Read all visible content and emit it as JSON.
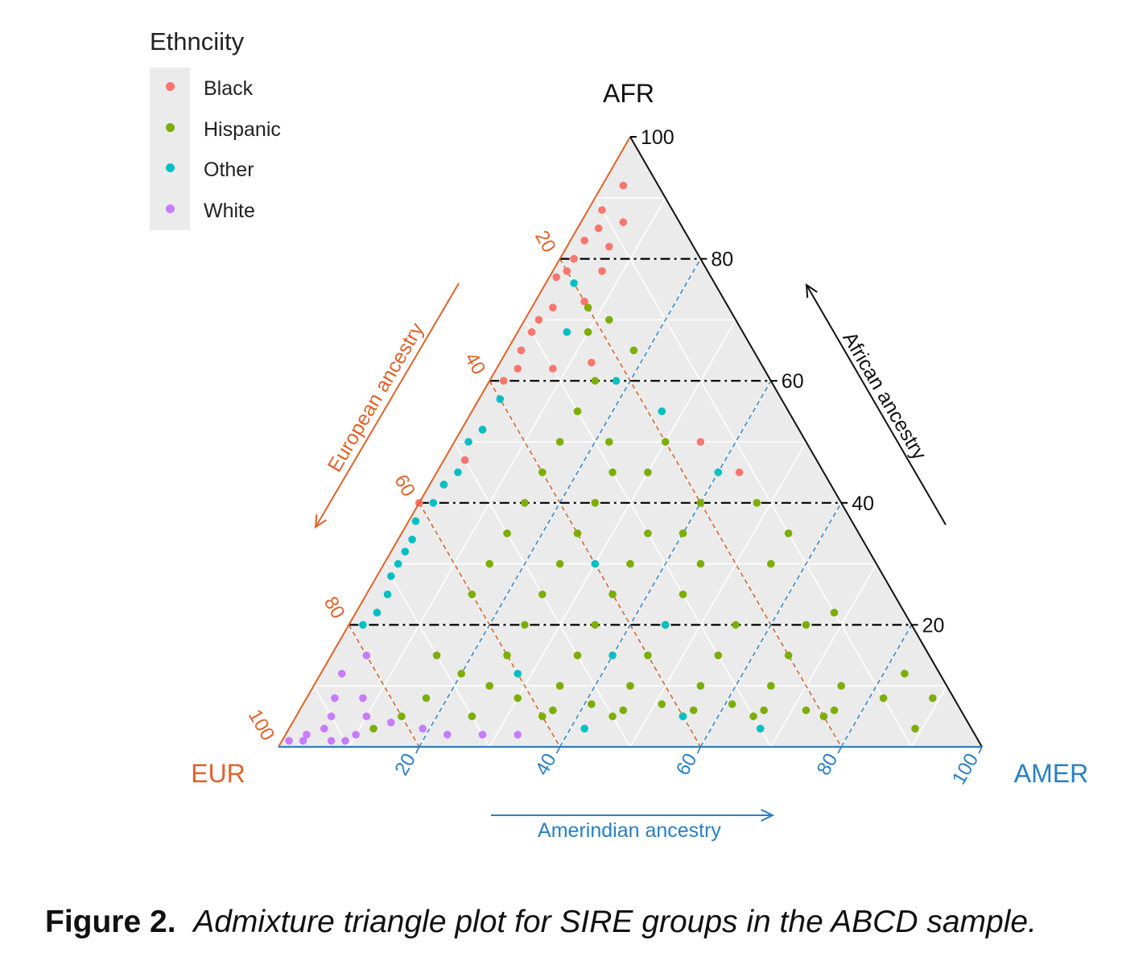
{
  "chart_data": {
    "type": "scatter",
    "subtype": "ternary",
    "legend": {
      "title": "Ethnciity",
      "placement": "top-left",
      "entries": [
        {
          "name": "Black",
          "color": "#f8766d"
        },
        {
          "name": "Hispanic",
          "color": "#7cae00"
        },
        {
          "name": "Other",
          "color": "#00bfc4"
        },
        {
          "name": "White",
          "color": "#c77cff"
        }
      ]
    },
    "axes": {
      "afr": {
        "vertex_label": "AFR",
        "axis_label": "African ancestry",
        "color": "#111111",
        "ticks": [
          "100",
          "80",
          "60",
          "40",
          "20"
        ]
      },
      "eur": {
        "vertex_label": "EUR",
        "axis_label": "European ancestry",
        "color": "#e0622a",
        "ticks": [
          "20",
          "40",
          "60",
          "80",
          "100"
        ]
      },
      "amer": {
        "vertex_label": "AMER",
        "axis_label": "Amerindian ancestry",
        "color": "#2a7fc4",
        "ticks": [
          "20",
          "40",
          "60",
          "80",
          "100"
        ]
      }
    },
    "grid": true,
    "series": [
      {
        "name": "Black",
        "points": [
          [
            5,
            92,
            3
          ],
          [
            10,
            88,
            2
          ],
          [
            12,
            85,
            3
          ],
          [
            15,
            83,
            2
          ],
          [
            18,
            80,
            2
          ],
          [
            20,
            78,
            2
          ],
          [
            22,
            77,
            1
          ],
          [
            25,
            72,
            3
          ],
          [
            28,
            70,
            2
          ],
          [
            30,
            68,
            2
          ],
          [
            33,
            65,
            2
          ],
          [
            35,
            62,
            3
          ],
          [
            38,
            60,
            2
          ],
          [
            8,
            86,
            6
          ],
          [
            12,
            82,
            6
          ],
          [
            15,
            78,
            7
          ],
          [
            20,
            73,
            7
          ],
          [
            30,
            62,
            8
          ],
          [
            24,
            63,
            13
          ],
          [
            15,
            50,
            35
          ],
          [
            12,
            45,
            43
          ],
          [
            45,
            52,
            3
          ],
          [
            50,
            47,
            3
          ],
          [
            55,
            43,
            2
          ],
          [
            60,
            40,
            0
          ]
        ]
      },
      {
        "name": "Hispanic",
        "points": [
          [
            20,
            72,
            8
          ],
          [
            18,
            70,
            12
          ],
          [
            22,
            68,
            10
          ],
          [
            17,
            65,
            18
          ],
          [
            25,
            60,
            15
          ],
          [
            30,
            55,
            15
          ],
          [
            28,
            50,
            22
          ],
          [
            35,
            50,
            15
          ],
          [
            20,
            50,
            30
          ],
          [
            25,
            45,
            30
          ],
          [
            30,
            45,
            25
          ],
          [
            40,
            45,
            15
          ],
          [
            45,
            40,
            15
          ],
          [
            35,
            40,
            25
          ],
          [
            20,
            40,
            40
          ],
          [
            25,
            35,
            40
          ],
          [
            30,
            35,
            35
          ],
          [
            40,
            35,
            25
          ],
          [
            50,
            35,
            15
          ],
          [
            55,
            30,
            15
          ],
          [
            45,
            30,
            25
          ],
          [
            35,
            30,
            35
          ],
          [
            25,
            30,
            45
          ],
          [
            15,
            30,
            55
          ],
          [
            30,
            25,
            45
          ],
          [
            40,
            25,
            35
          ],
          [
            50,
            25,
            25
          ],
          [
            60,
            25,
            15
          ],
          [
            55,
            20,
            25
          ],
          [
            45,
            20,
            35
          ],
          [
            35,
            20,
            45
          ],
          [
            25,
            20,
            55
          ],
          [
            15,
            20,
            65
          ],
          [
            20,
            15,
            65
          ],
          [
            30,
            15,
            55
          ],
          [
            40,
            15,
            45
          ],
          [
            50,
            15,
            35
          ],
          [
            60,
            15,
            25
          ],
          [
            70,
            15,
            15
          ],
          [
            65,
            10,
            25
          ],
          [
            55,
            10,
            35
          ],
          [
            45,
            10,
            45
          ],
          [
            35,
            10,
            55
          ],
          [
            25,
            10,
            65
          ],
          [
            15,
            10,
            75
          ],
          [
            10,
            8,
            82
          ],
          [
            20,
            5,
            75
          ],
          [
            30,
            5,
            65
          ],
          [
            40,
            5,
            55
          ],
          [
            50,
            5,
            45
          ],
          [
            60,
            5,
            35
          ],
          [
            70,
            5,
            25
          ],
          [
            80,
            5,
            15
          ],
          [
            85,
            3,
            12
          ],
          [
            75,
            8,
            17
          ],
          [
            68,
            12,
            20
          ],
          [
            62,
            8,
            30
          ],
          [
            58,
            6,
            36
          ],
          [
            52,
            7,
            41
          ],
          [
            48,
            6,
            46
          ],
          [
            42,
            7,
            51
          ],
          [
            38,
            6,
            56
          ],
          [
            32,
            7,
            61
          ],
          [
            28,
            6,
            66
          ],
          [
            22,
            6,
            72
          ],
          [
            18,
            6,
            76
          ],
          [
            5,
            12,
            83
          ],
          [
            3,
            8,
            89
          ],
          [
            8,
            3,
            89
          ],
          [
            10,
            22,
            68
          ],
          [
            12,
            40,
            48
          ],
          [
            10,
            35,
            55
          ]
        ]
      },
      {
        "name": "Other",
        "points": [
          [
            45,
            52,
            3
          ],
          [
            40,
            57,
            3
          ],
          [
            48,
            50,
            2
          ],
          [
            52,
            45,
            3
          ],
          [
            55,
            43,
            2
          ],
          [
            58,
            40,
            2
          ],
          [
            62,
            37,
            1
          ],
          [
            64,
            34,
            2
          ],
          [
            66,
            32,
            2
          ],
          [
            68,
            30,
            2
          ],
          [
            70,
            28,
            2
          ],
          [
            72,
            25,
            3
          ],
          [
            75,
            22,
            3
          ],
          [
            78,
            20,
            2
          ],
          [
            20,
            76,
            4
          ],
          [
            25,
            68,
            7
          ],
          [
            22,
            60,
            18
          ],
          [
            18,
            55,
            27
          ],
          [
            15,
            45,
            40
          ],
          [
            40,
            30,
            30
          ],
          [
            35,
            20,
            45
          ],
          [
            40,
            5,
            55
          ],
          [
            30,
            3,
            67
          ],
          [
            55,
            3,
            42
          ],
          [
            60,
            12,
            28
          ],
          [
            45,
            15,
            40
          ]
        ]
      },
      {
        "name": "White",
        "points": [
          [
            80,
            15,
            5
          ],
          [
            85,
            12,
            3
          ],
          [
            88,
            8,
            4
          ],
          [
            90,
            5,
            5
          ],
          [
            92,
            3,
            5
          ],
          [
            95,
            2,
            3
          ],
          [
            96,
            1,
            3
          ],
          [
            85,
            5,
            10
          ],
          [
            82,
            4,
            14
          ],
          [
            78,
            3,
            19
          ],
          [
            90,
            1,
            9
          ],
          [
            75,
            2,
            23
          ],
          [
            70,
            2,
            28
          ],
          [
            65,
            2,
            33
          ],
          [
            88,
            2,
            10
          ],
          [
            92,
            1,
            7
          ],
          [
            98,
            1,
            1
          ],
          [
            84,
            8,
            8
          ]
        ]
      }
    ],
    "note": "Each point is [EUR, AFR, AMER] in percent (sums to 100); only a representative subset of the plotted points is recorded."
  },
  "caption": {
    "label": "Figure 2.",
    "text": "Admixture triangle plot for SIRE groups in the ABCD sample."
  }
}
